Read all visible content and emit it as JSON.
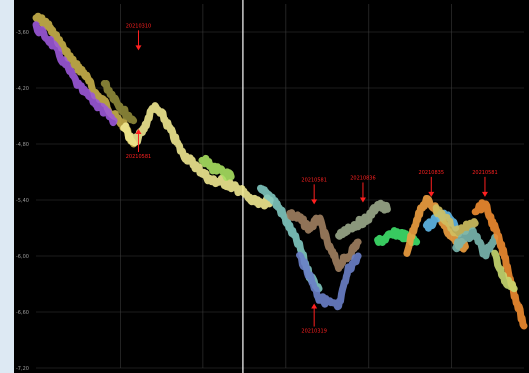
{
  "chart_data": {
    "type": "line",
    "title": "",
    "xlabel": "",
    "ylabel": "",
    "grid": true,
    "y_ticks": [
      "-3,60",
      "-4,20",
      "-4,80",
      "-5,40",
      "-6,00",
      "-6,60",
      "-7,20"
    ],
    "y_tick_values": [
      -3.6,
      -4.2,
      -4.8,
      -5.4,
      -6.0,
      -6.6,
      -7.2
    ],
    "ylim": [
      -7.2,
      -3.3
    ],
    "xlim": [
      0,
      100
    ],
    "x_grid": [
      17.3,
      34.2,
      51.2,
      68.2,
      85.1
    ],
    "vertical_marker_x": 42.4,
    "series": [
      {
        "color": "#c8b04a",
        "x": [
          0,
          2,
          4,
          6,
          8,
          10,
          12,
          14,
          16,
          18,
          20
        ],
        "y": [
          -3.45,
          -3.5,
          -3.65,
          -3.8,
          -3.95,
          -4.05,
          -4.25,
          -4.35,
          -4.5,
          -4.6,
          -4.8
        ]
      },
      {
        "color": "#9b58d8",
        "x": [
          0,
          3,
          6,
          9,
          12,
          14,
          16
        ],
        "y": [
          -3.55,
          -3.7,
          -3.95,
          -4.2,
          -4.35,
          -4.45,
          -4.55
        ]
      },
      {
        "color": "#8f8a3a",
        "x": [
          14,
          16,
          18,
          20
        ],
        "y": [
          -4.15,
          -4.3,
          -4.45,
          -4.55
        ]
      },
      {
        "color": "#f0e890",
        "x": [
          18,
          20,
          22,
          24,
          26,
          28,
          30,
          32,
          34,
          36,
          38,
          40,
          42,
          44,
          46,
          48
        ],
        "y": [
          -4.6,
          -4.8,
          -4.65,
          -4.4,
          -4.5,
          -4.7,
          -4.9,
          -5.0,
          -5.1,
          -5.2,
          -5.2,
          -5.25,
          -5.3,
          -5.4,
          -5.45,
          -5.4
        ]
      },
      {
        "color": "#a8e060",
        "x": [
          34,
          36,
          38,
          40
        ],
        "y": [
          -4.95,
          -5.05,
          -5.1,
          -5.15
        ]
      },
      {
        "color": "#7fc8c0",
        "x": [
          46,
          48,
          50,
          52,
          54,
          56,
          58
        ],
        "y": [
          -5.3,
          -5.35,
          -5.5,
          -5.7,
          -5.9,
          -6.2,
          -6.35
        ]
      },
      {
        "color": "#a08060",
        "x": [
          52,
          54,
          56,
          58,
          60,
          62,
          64,
          66
        ],
        "y": [
          -5.55,
          -5.6,
          -5.7,
          -5.6,
          -5.9,
          -6.1,
          -6.0,
          -5.85
        ]
      },
      {
        "color": "#6a7fc8",
        "x": [
          54,
          56,
          58,
          60,
          62,
          64,
          66
        ],
        "y": [
          -6.0,
          -6.2,
          -6.45,
          -6.5,
          -6.55,
          -6.15,
          -6.0
        ]
      },
      {
        "color": "#9aa88a",
        "x": [
          62,
          64,
          66,
          68,
          70,
          72
        ],
        "y": [
          -5.8,
          -5.7,
          -5.65,
          -5.6,
          -5.45,
          -5.5
        ]
      },
      {
        "color": "#3ee06a",
        "x": [
          70,
          72,
          74,
          76,
          78
        ],
        "y": [
          -5.85,
          -5.8,
          -5.75,
          -5.8,
          -5.85
        ]
      },
      {
        "color": "#f0a040",
        "x": [
          76,
          78,
          80,
          82,
          84,
          86,
          88
        ],
        "y": [
          -5.95,
          -5.6,
          -5.4,
          -5.5,
          -5.7,
          -5.85,
          -5.9
        ]
      },
      {
        "color": "#60b8e8",
        "x": [
          80,
          82,
          84,
          86
        ],
        "y": [
          -5.7,
          -5.6,
          -5.55,
          -5.7
        ]
      },
      {
        "color": "#d0c060",
        "x": [
          82,
          84,
          86,
          88,
          90
        ],
        "y": [
          -5.5,
          -5.6,
          -5.75,
          -5.7,
          -5.65
        ]
      },
      {
        "color": "#7ab8b0",
        "x": [
          86,
          88,
          90,
          92,
          94
        ],
        "y": [
          -5.9,
          -5.8,
          -5.75,
          -6.0,
          -5.8
        ]
      },
      {
        "color": "#f08c30",
        "x": [
          90,
          92,
          94,
          96,
          98,
          100
        ],
        "y": [
          -5.5,
          -5.45,
          -5.7,
          -6.0,
          -6.4,
          -6.75
        ]
      },
      {
        "color": "#c8d870",
        "x": [
          94,
          96,
          98
        ],
        "y": [
          -6.0,
          -6.25,
          -6.35
        ]
      }
    ],
    "annotations": [
      {
        "label": "20210310",
        "x": 21,
        "y": -3.55,
        "arrow": "down"
      },
      {
        "label": "20210581",
        "x": 21,
        "y": -4.95,
        "arrow": "up"
      },
      {
        "label": "20210581",
        "x": 57,
        "y": -5.2,
        "arrow": "down"
      },
      {
        "label": "20210836",
        "x": 67,
        "y": -5.18,
        "arrow": "down"
      },
      {
        "label": "20210835",
        "x": 81,
        "y": -5.12,
        "arrow": "down"
      },
      {
        "label": "20210581",
        "x": 92,
        "y": -5.12,
        "arrow": "down"
      },
      {
        "label": "20210319",
        "x": 57,
        "y": -6.82,
        "arrow": "up"
      }
    ]
  }
}
